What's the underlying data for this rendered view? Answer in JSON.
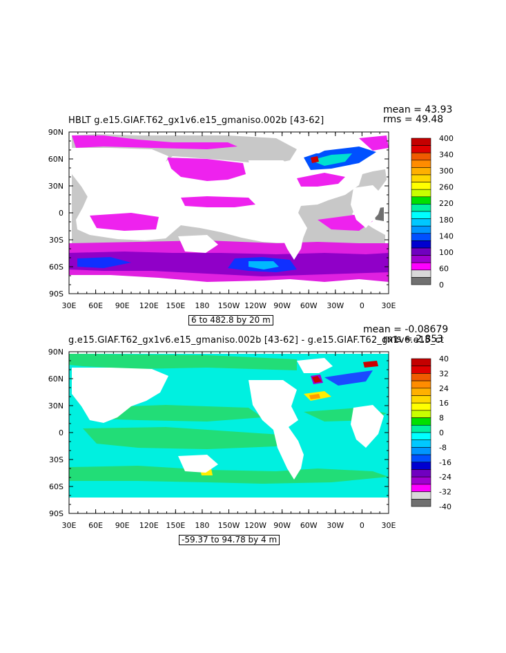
{
  "panel1": {
    "title": "HBLT g.e15.GIAF.T62_gx1v6.e15_gmaniso.002b [43-62]",
    "mean_label": "mean = 43.93",
    "rms_label": "rms = 49.48",
    "range_label": "6 to 482.8 by 20 m",
    "colorbar": {
      "labels": [
        "400",
        "340",
        "300",
        "260",
        "220",
        "180",
        "140",
        "100",
        "60",
        "0"
      ],
      "colors": [
        "#c40000",
        "#e00000",
        "#f05a00",
        "#ff8c00",
        "#ffb000",
        "#ffd800",
        "#ffff00",
        "#c8ff00",
        "#00e000",
        "#00f0a0",
        "#00ffff",
        "#00c8ff",
        "#0096ff",
        "#0050ff",
        "#0000d0",
        "#7000c0",
        "#a000d0",
        "#ff00ff",
        "#d8d8d8",
        "#707070"
      ]
    }
  },
  "panel2": {
    "title": "g.e15.GIAF.T62_gx1v6.e15_gmaniso.002b [43-62] - g.e15.GIAF.T62_gx1v6.e15_ct",
    "mean_label": "mean = -0.08679",
    "rms_label": "rms = 2.853",
    "range_label": "-59.37 to 94.78 by 4 m",
    "colorbar": {
      "labels": [
        "40",
        "32",
        "24",
        "16",
        "8",
        "0",
        "-8",
        "-16",
        "-24",
        "-32",
        "-40"
      ],
      "colors": [
        "#c40000",
        "#e00000",
        "#f05a00",
        "#ff8c00",
        "#ffb000",
        "#ffd800",
        "#ffff00",
        "#c8ff00",
        "#00e000",
        "#00f0a0",
        "#00ffff",
        "#00c8ff",
        "#0096ff",
        "#0050ff",
        "#0000d0",
        "#7000c0",
        "#a000d0",
        "#ff00ff",
        "#d8d8d8",
        "#707070"
      ]
    }
  },
  "axes": {
    "y_labels": [
      "90N",
      "60N",
      "30N",
      "0",
      "30S",
      "60S",
      "90S"
    ],
    "x_labels": [
      "30E",
      "60E",
      "90E",
      "120E",
      "150E",
      "180",
      "150W",
      "120W",
      "90W",
      "60W",
      "30W",
      "0",
      "30E"
    ]
  }
}
